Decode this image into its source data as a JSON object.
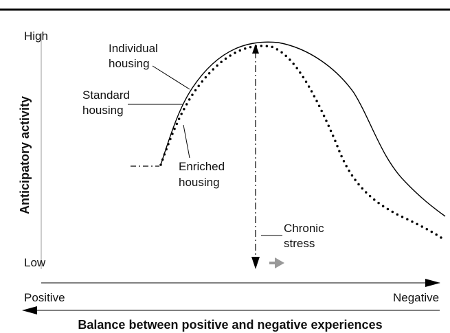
{
  "y_axis": {
    "high": "High",
    "low": "Low",
    "title": "Anticipatory activity"
  },
  "curve_labels": [
    {
      "lines": [
        "Individual",
        "housing"
      ]
    },
    {
      "lines": [
        "Standard",
        "housing"
      ]
    },
    {
      "lines": [
        "Enriched",
        "housing"
      ]
    },
    {
      "lines": [
        "Chronic",
        "stress"
      ]
    }
  ],
  "x_axis": {
    "left": "Positive",
    "right": "Negative",
    "title": "Balance between positive and negative experiences"
  }
}
